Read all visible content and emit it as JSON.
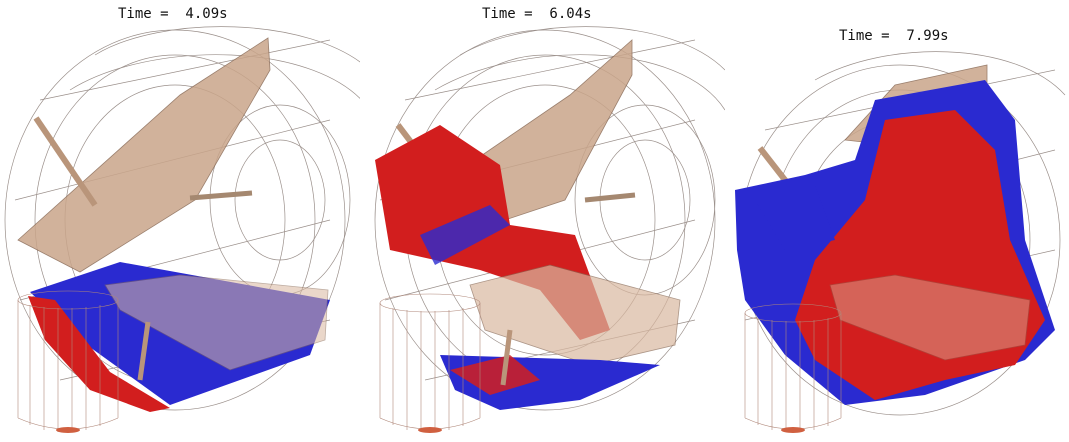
{
  "panels": [
    {
      "time_label": "Time =  4.09s"
    },
    {
      "time_label": "Time =  6.04s"
    },
    {
      "time_label": "Time =  7.99s"
    }
  ],
  "colors": {
    "particle_red": "#d21e1e",
    "particle_blue": "#2a2ad0",
    "baffle_tan": "#c9a58a",
    "wireframe": "#9a8f8a",
    "background": "#ffffff"
  }
}
